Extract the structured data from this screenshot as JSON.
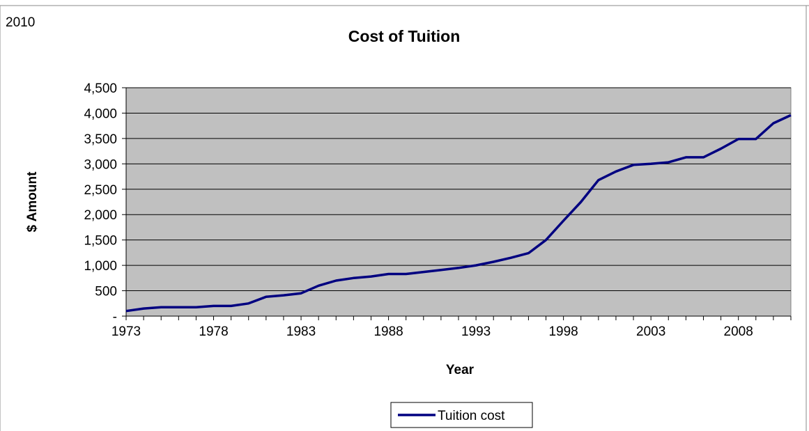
{
  "corner_label": "2010",
  "chart_data": {
    "type": "line",
    "title": "Cost of Tuition",
    "xlabel": "Year",
    "ylabel": "$ Amount",
    "ylim": [
      0,
      4500
    ],
    "yticks": [
      0,
      500,
      1000,
      1500,
      2000,
      2500,
      3000,
      3500,
      4000,
      4500
    ],
    "ytick_labels": [
      "-",
      "500",
      "1,000",
      "1,500",
      "2,000",
      "2,500",
      "3,000",
      "3,500",
      "4,000",
      "4,500"
    ],
    "xlim": [
      1973,
      2011
    ],
    "xticks": [
      1973,
      1978,
      1983,
      1988,
      1993,
      1998,
      2003,
      2008
    ],
    "xtick_labels": [
      "1973",
      "1978",
      "1983",
      "1988",
      "1993",
      "1998",
      "2003",
      "2008"
    ],
    "grid": true,
    "legend_position": "bottom",
    "series": [
      {
        "name": "Tuition cost",
        "color": "#000080",
        "x": [
          1973,
          1974,
          1975,
          1976,
          1977,
          1978,
          1979,
          1980,
          1981,
          1982,
          1983,
          1984,
          1985,
          1986,
          1987,
          1988,
          1989,
          1990,
          1991,
          1992,
          1993,
          1994,
          1995,
          1996,
          1997,
          1998,
          1999,
          2000,
          2001,
          2002,
          2003,
          2004,
          2005,
          2006,
          2007,
          2008,
          2009,
          2010,
          2011
        ],
        "y": [
          100,
          150,
          175,
          175,
          175,
          200,
          200,
          250,
          380,
          410,
          450,
          600,
          700,
          750,
          780,
          830,
          830,
          870,
          910,
          950,
          1000,
          1070,
          1150,
          1240,
          1500,
          1880,
          2250,
          2680,
          2850,
          2980,
          3000,
          3030,
          3130,
          3130,
          3300,
          3490,
          3490,
          3800,
          3960
        ]
      }
    ]
  }
}
